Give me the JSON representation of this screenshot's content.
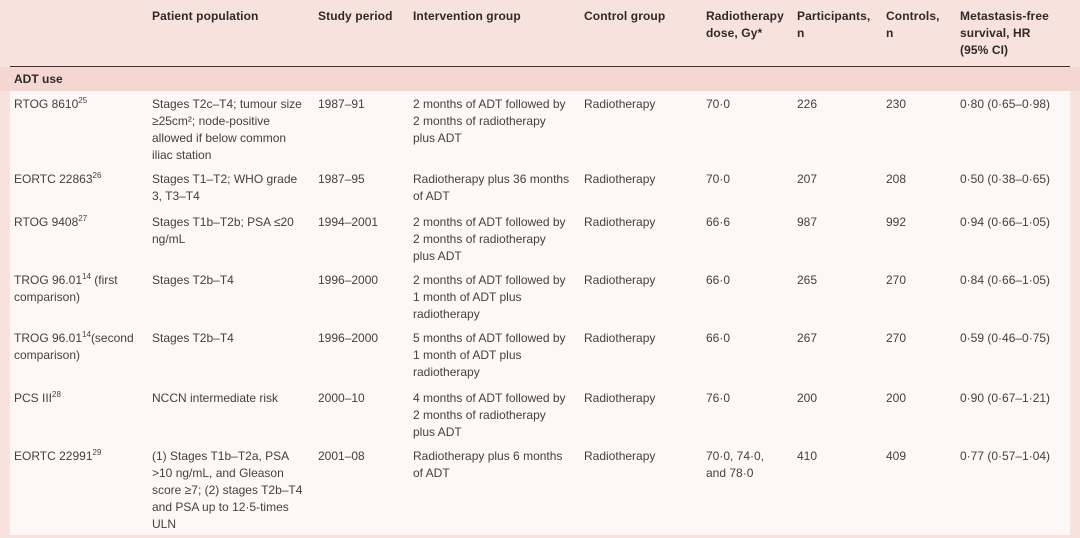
{
  "theme": {
    "page_pink": "#f8e2de",
    "section_pink": "#f5d7d2",
    "row_bg": "#fdf8f7",
    "rule_color": "#41302e",
    "text_color": "#454040",
    "header_text": "#2e2a29"
  },
  "table": {
    "columns": [
      "",
      "Patient population",
      "Study period",
      "Intervention group",
      "Control group",
      "Radiotherapy dose, Gy*",
      "Participants, n",
      "Controls, n",
      "Metastasis-free survival, HR (95% CI)"
    ],
    "section_label": "ADT use",
    "rows": [
      {
        "study": "RTOG 8610",
        "ref": "25",
        "study_suffix": "",
        "patient_population": "Stages T2c–T4; tumour size ≥25cm²; node-positive allowed if below common iliac station",
        "study_period": "1987–91",
        "intervention_group": "2 months of ADT followed by 2 months of radiotherapy plus ADT",
        "control_group": "Radiotherapy",
        "radiotherapy_dose": "70·0",
        "participants": "226",
        "controls": "230",
        "metastasis_free_survival_hr": "0·80 (0·65–0·98)"
      },
      {
        "study": "EORTC 22863",
        "ref": "26",
        "study_suffix": "",
        "patient_population": "Stages T1–T2; WHO grade 3, T3–T4",
        "study_period": "1987–95",
        "intervention_group": "Radiotherapy plus 36 months of ADT",
        "control_group": "Radiotherapy",
        "radiotherapy_dose": "70·0",
        "participants": "207",
        "controls": "208",
        "metastasis_free_survival_hr": "0·50 (0·38–0·65)"
      },
      {
        "study": "RTOG 9408",
        "ref": "27",
        "study_suffix": "",
        "patient_population": "Stages T1b–T2b; PSA ≤20 ng/mL",
        "study_period": "1994–2001",
        "intervention_group": "2 months of ADT followed by 2 months of radiotherapy plus ADT",
        "control_group": "Radiotherapy",
        "radiotherapy_dose": "66·6",
        "participants": "987",
        "controls": "992",
        "metastasis_free_survival_hr": "0·94 (0·66–1·05)"
      },
      {
        "study": "TROG 96.01",
        "ref": "14",
        "study_suffix": " (first comparison)",
        "patient_population": "Stages T2b–T4",
        "study_period": "1996–2000",
        "intervention_group": "2 months of ADT followed by 1 month of ADT plus radiotherapy",
        "control_group": "Radiotherapy",
        "radiotherapy_dose": "66·0",
        "participants": "265",
        "controls": "270",
        "metastasis_free_survival_hr": "0·84 (0·66–1·05)"
      },
      {
        "study": "TROG 96.01",
        "ref": "14",
        "study_suffix": "(second comparison)",
        "patient_population": "Stages T2b–T4",
        "study_period": "1996–2000",
        "intervention_group": "5 months of ADT followed by 1 month of ADT plus radiotherapy",
        "control_group": "Radiotherapy",
        "radiotherapy_dose": "66·0",
        "participants": "267",
        "controls": "270",
        "metastasis_free_survival_hr": "0·59 (0·46–0·75)"
      },
      {
        "study": "PCS III",
        "ref": "28",
        "study_suffix": "",
        "patient_population": "NCCN intermediate risk",
        "study_period": "2000–10",
        "intervention_group": "4 months of ADT followed by 2 months of radiotherapy plus ADT",
        "control_group": "Radiotherapy",
        "radiotherapy_dose": "76·0",
        "participants": "200",
        "controls": "200",
        "metastasis_free_survival_hr": "0·90 (0·67–1·21)"
      },
      {
        "study": "EORTC 22991",
        "ref": "29",
        "study_suffix": "",
        "patient_population": "(1) Stages T1b–T2a, PSA >10 ng/mL, and Gleason score ≥7; (2) stages T2b–T4 and PSA up to 12·5-times ULN",
        "study_period": "2001–08",
        "intervention_group": "Radiotherapy plus 6 months of ADT",
        "control_group": "Radiotherapy",
        "radiotherapy_dose": "70·0, 74·0, and 78·0",
        "participants": "410",
        "controls": "409",
        "metastasis_free_survival_hr": "0·77 (0·57–1·04)"
      }
    ]
  }
}
